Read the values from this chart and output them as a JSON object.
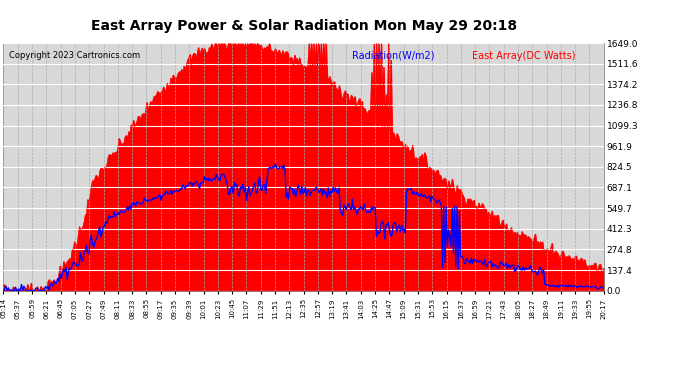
{
  "title": "East Array Power & Solar Radiation Mon May 29 20:18",
  "copyright": "Copyright 2023 Cartronics.com",
  "legend_radiation": "Radiation(W/m2)",
  "legend_east_array": "East Array(DC Watts)",
  "radiation_color": "blue",
  "east_array_color": "red",
  "background_color": "#d8d8d8",
  "grid_color_h": "white",
  "grid_color_v": "#aaaaaa",
  "ylim": [
    0,
    1649.0
  ],
  "yticks": [
    0.0,
    137.4,
    274.8,
    412.3,
    549.7,
    687.1,
    824.5,
    961.9,
    1099.3,
    1236.8,
    1374.2,
    1511.6,
    1649.0
  ],
  "ytick_labels": [
    "0.0",
    "137.4",
    "274.8",
    "412.3",
    "549.7",
    "687.1",
    "824.5",
    "961.9",
    "1099.3",
    "1236.8",
    "1374.2",
    "1511.6",
    "1649.0"
  ],
  "xtick_labels": [
    "05:14",
    "05:37",
    "05:59",
    "06:21",
    "06:45",
    "07:05",
    "07:27",
    "07:49",
    "08:11",
    "08:33",
    "08:55",
    "09:17",
    "09:35",
    "09:39",
    "10:01",
    "10:23",
    "10:45",
    "11:07",
    "11:29",
    "11:51",
    "12:13",
    "12:35",
    "12:57",
    "13:19",
    "13:41",
    "14:03",
    "14:25",
    "14:47",
    "15:09",
    "15:31",
    "15:53",
    "16:15",
    "16:37",
    "16:59",
    "17:21",
    "17:43",
    "18:05",
    "18:27",
    "18:49",
    "19:11",
    "19:33",
    "19:55",
    "20:17"
  ]
}
